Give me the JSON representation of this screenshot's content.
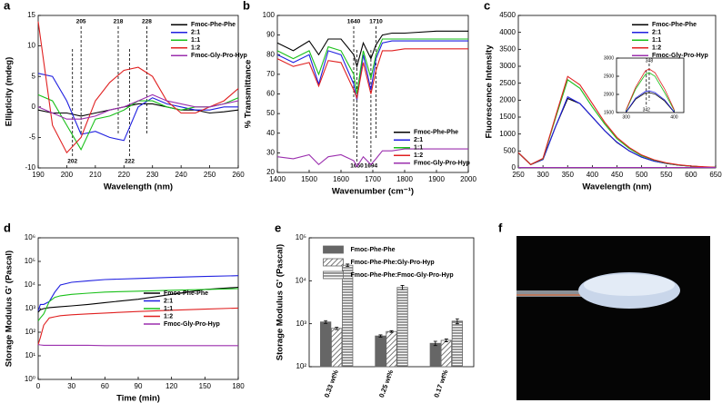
{
  "chart_data": [
    {
      "type": "line",
      "label": "a",
      "xlabel": "Wavelength (nm)",
      "ylabel": "Ellipticity (mdeg)",
      "xlim": [
        190,
        260
      ],
      "xticks": [
        190,
        200,
        210,
        220,
        230,
        240,
        250,
        260
      ],
      "ylim": [
        -10,
        15
      ],
      "yticks": [
        -10,
        -5,
        0,
        5,
        10,
        15
      ],
      "legend": "upper right",
      "top_markers": [
        205,
        218,
        228
      ],
      "bottom_markers": [
        202,
        222
      ],
      "x": [
        190,
        195,
        200,
        205,
        210,
        215,
        220,
        225,
        230,
        235,
        240,
        245,
        250,
        255,
        260
      ],
      "series": [
        {
          "name": "Fmoc-Phe-Phe",
          "color": "#000000",
          "values": [
            -0.5,
            -1,
            -1,
            -1.5,
            -1,
            -0.5,
            0,
            0.5,
            0.5,
            0,
            -0.5,
            -0.5,
            -1,
            -0.8,
            -0.5
          ]
        },
        {
          "name": "2:1",
          "color": "#1f1fe0",
          "values": [
            5.5,
            5,
            1,
            -4.5,
            -4,
            -5,
            -5.5,
            0,
            1.5,
            0.5,
            0,
            -0.5,
            -0.5,
            0,
            0
          ]
        },
        {
          "name": "1:1",
          "color": "#19c019",
          "values": [
            2,
            1,
            -3,
            -7,
            -2,
            -1.5,
            -0.5,
            1,
            1,
            0,
            -0.5,
            0,
            0,
            0.5,
            1.5
          ]
        },
        {
          "name": "1:2",
          "color": "#e02020",
          "values": [
            14,
            -3,
            -7.5,
            -5,
            1,
            4,
            6,
            6.5,
            5,
            1,
            -1,
            -1,
            0,
            1,
            3
          ]
        },
        {
          "name": "Fmoc-Gly-Pro-Hyp",
          "color": "#9b2fae",
          "values": [
            0,
            -1,
            -2,
            -2,
            -1.5,
            -0.5,
            0,
            1,
            2,
            1,
            0.5,
            0,
            0,
            0.5,
            1
          ]
        }
      ]
    },
    {
      "type": "line",
      "label": "b",
      "xlabel": "Wavenumber (cm⁻¹)",
      "ylabel": "% Transmittance",
      "xlim": [
        1400,
        2000
      ],
      "xticks": [
        1400,
        1500,
        1600,
        1700,
        1800,
        1900,
        2000
      ],
      "ylim": [
        20,
        100
      ],
      "yticks": [
        20,
        30,
        40,
        50,
        60,
        70,
        80,
        90,
        100
      ],
      "legend": "lower right",
      "top_markers": [
        1640,
        1710
      ],
      "bottom_markers": [
        1650,
        1694
      ],
      "x": [
        1400,
        1450,
        1500,
        1530,
        1560,
        1600,
        1640,
        1650,
        1670,
        1694,
        1710,
        1730,
        1760,
        1800,
        1900,
        2000
      ],
      "series": [
        {
          "name": "Fmoc-Phe-Phe",
          "color": "#000000",
          "values": [
            86,
            82,
            87,
            80,
            88,
            88,
            80,
            74,
            86,
            78,
            85,
            90,
            91,
            91,
            92,
            92
          ]
        },
        {
          "name": "2:1",
          "color": "#1f1fe0",
          "values": [
            80,
            76,
            80,
            65,
            82,
            80,
            65,
            57,
            80,
            62,
            78,
            86,
            87,
            87,
            87,
            87
          ]
        },
        {
          "name": "1:1",
          "color": "#19c019",
          "values": [
            82,
            78,
            82,
            70,
            84,
            82,
            70,
            60,
            82,
            68,
            80,
            88,
            88,
            88,
            88,
            88
          ]
        },
        {
          "name": "1:2",
          "color": "#e02020",
          "values": [
            78,
            74,
            76,
            64,
            77,
            76,
            62,
            58,
            76,
            60,
            72,
            82,
            82,
            83,
            83,
            83
          ]
        },
        {
          "name": "Fmoc-Gly-Pro-Hyp",
          "color": "#9b2fae",
          "values": [
            28,
            27,
            29,
            24,
            28,
            29,
            26,
            23,
            28,
            24,
            27,
            31,
            31,
            32,
            32,
            32
          ]
        }
      ]
    },
    {
      "type": "line",
      "label": "c",
      "xlabel": "Wavelength (nm)",
      "ylabel": "Fluorescence Intensity",
      "xlim": [
        250,
        650
      ],
      "xticks": [
        250,
        300,
        350,
        400,
        450,
        500,
        550,
        600,
        650
      ],
      "ylim": [
        0,
        4500
      ],
      "yticks": [
        0,
        500,
        1000,
        1500,
        2000,
        2500,
        3000,
        3500,
        4000,
        4500
      ],
      "legend": "upper right",
      "x": [
        250,
        275,
        300,
        325,
        350,
        375,
        400,
        425,
        450,
        475,
        500,
        525,
        550,
        575,
        600,
        625,
        650
      ],
      "series": [
        {
          "name": "Fmoc-Phe-Phe",
          "color": "#000000",
          "values": [
            450,
            100,
            250,
            1200,
            2050,
            1900,
            1500,
            1100,
            750,
            500,
            320,
            200,
            130,
            80,
            50,
            30,
            20
          ]
        },
        {
          "name": "2:1",
          "color": "#1f1fe0",
          "values": [
            450,
            100,
            250,
            1200,
            2100,
            1900,
            1500,
            1100,
            760,
            500,
            320,
            200,
            130,
            80,
            50,
            30,
            20
          ]
        },
        {
          "name": "1:1",
          "color": "#19c019",
          "values": [
            450,
            100,
            270,
            1450,
            2600,
            2350,
            1800,
            1300,
            860,
            570,
            360,
            230,
            140,
            85,
            50,
            30,
            20
          ]
        },
        {
          "name": "1:2",
          "color": "#e02020",
          "values": [
            450,
            100,
            280,
            1500,
            2700,
            2450,
            1900,
            1350,
            900,
            600,
            380,
            240,
            150,
            90,
            55,
            35,
            20
          ]
        },
        {
          "name": "Fmoc-Gly-Pro-Hyp",
          "color": "#9b2fae",
          "values": [
            10,
            10,
            10,
            10,
            10,
            10,
            10,
            10,
            10,
            10,
            10,
            10,
            10,
            10,
            10,
            10,
            10
          ]
        }
      ],
      "inset": {
        "xlim": [
          280,
          420
        ],
        "xticks": [
          300,
          400
        ],
        "ylim": [
          1500,
          3000
        ],
        "yticks": [
          1500,
          2000,
          2500,
          3000
        ],
        "top_markers": [
          348
        ],
        "bottom_markers": [
          342
        ],
        "x": [
          300,
          320,
          340,
          348,
          360,
          380,
          400
        ],
        "series": [
          {
            "color": "#000000",
            "values": [
              1510,
              1870,
              2040,
              2050,
              2010,
              1820,
              1510
            ]
          },
          {
            "color": "#1f1fe0",
            "values": [
              1520,
              1900,
              2080,
              2100,
              2050,
              1850,
              1520
            ]
          },
          {
            "color": "#19c019",
            "values": [
              1560,
              2150,
              2550,
              2600,
              2500,
              2050,
              1560
            ]
          },
          {
            "color": "#e02020",
            "values": [
              1580,
              2200,
              2650,
              2700,
              2600,
              2150,
              1580
            ]
          }
        ]
      }
    },
    {
      "type": "line",
      "label": "d",
      "xlabel": "Time (min)",
      "ylabel": "Storage Modulus G' (Pascal)",
      "xlim": [
        0,
        180
      ],
      "xticks": [
        0,
        30,
        60,
        90,
        120,
        150,
        180
      ],
      "log_y": true,
      "ylim": [
        1,
        1000000
      ],
      "yticks": [
        {
          "value": 1,
          "label": "10⁰"
        },
        {
          "value": 10,
          "label": "10¹"
        },
        {
          "value": 100,
          "label": "10²"
        },
        {
          "value": 1000,
          "label": "10³"
        },
        {
          "value": 10000,
          "label": "10⁴"
        },
        {
          "value": 100000,
          "label": "10⁵"
        },
        {
          "value": 1000000,
          "label": "10⁶"
        }
      ],
      "legend": "center right",
      "x": [
        0,
        2,
        5,
        10,
        15,
        20,
        30,
        45,
        60,
        90,
        120,
        150,
        180
      ],
      "series": [
        {
          "name": "Fmoc-Phe-Phe",
          "color": "#000000",
          "values": [
            700,
            900,
            1000,
            1100,
            1150,
            1200,
            1300,
            1500,
            1800,
            2500,
            4000,
            6500,
            8000
          ]
        },
        {
          "name": "2:1",
          "color": "#1f1fe0",
          "values": [
            800,
            1500,
            1500,
            2000,
            5000,
            10000,
            13000,
            15000,
            17000,
            19000,
            21000,
            23000,
            25000
          ]
        },
        {
          "name": "1:1",
          "color": "#19c019",
          "values": [
            300,
            400,
            600,
            2000,
            3000,
            3500,
            4000,
            4500,
            5000,
            5500,
            6000,
            6500,
            7000
          ]
        },
        {
          "name": "1:2",
          "color": "#e02020",
          "values": [
            30,
            60,
            200,
            400,
            450,
            500,
            550,
            600,
            650,
            750,
            850,
            950,
            1050
          ]
        },
        {
          "name": "Fmoc-Gly-Pro-Hyp",
          "color": "#9b2fae",
          "values": [
            30,
            29,
            28,
            28,
            28,
            28,
            28,
            28,
            27,
            27,
            27,
            27,
            27
          ]
        }
      ]
    },
    {
      "type": "bar",
      "label": "e",
      "ylabel": "Storage Modulus G' (Pascal)",
      "log_y": true,
      "ylim": [
        100,
        100000
      ],
      "yticks": [
        {
          "value": 100,
          "label": "10²"
        },
        {
          "value": 1000,
          "label": "10³"
        },
        {
          "value": 10000,
          "label": "10⁴"
        },
        {
          "value": 100000,
          "label": "10⁵"
        }
      ],
      "legend": "upper center",
      "categories": [
        "0.33 wt%",
        "0.25 wt%",
        "0.17 wt%"
      ],
      "series": [
        {
          "name": "Fmoc-Phe-Phe",
          "color": "#666666",
          "pattern": "solid",
          "values": [
            1100,
            520,
            350
          ],
          "errors": [
            80,
            30,
            40
          ]
        },
        {
          "name": "Fmoc-Phe-Phe:Gly-Pro-Hyp",
          "color": "#666666",
          "pattern": "diagonal",
          "values": [
            780,
            660,
            410
          ],
          "errors": [
            50,
            30,
            30
          ]
        },
        {
          "name": "Fmoc-Phe-Phe:Fmoc-Gly-Pro-Hyp",
          "color": "#666666",
          "pattern": "horizontal",
          "values": [
            23000,
            7000,
            1150
          ],
          "errors": [
            1500,
            800,
            150
          ]
        }
      ]
    }
  ],
  "photo": {
    "label": "f"
  }
}
